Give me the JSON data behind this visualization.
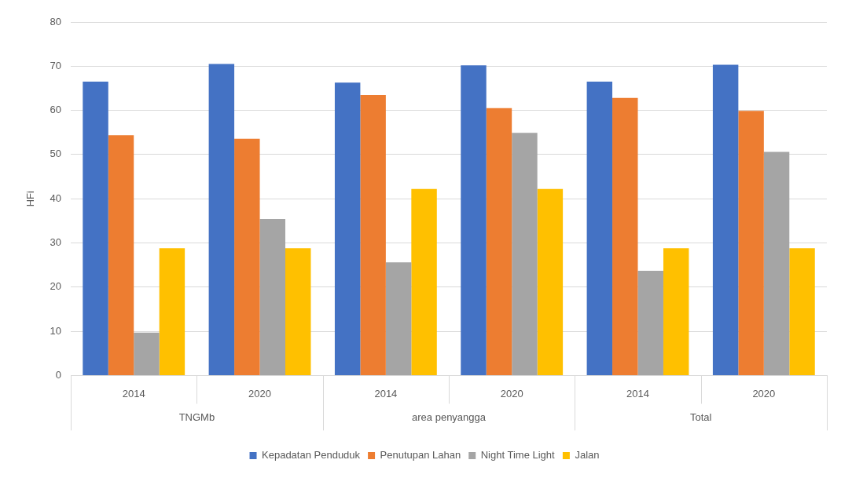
{
  "chart_data": {
    "type": "bar",
    "ylabel": "HFi",
    "categories": [
      "2014",
      "2020",
      "2014",
      "2020",
      "2014",
      "2020"
    ],
    "annotations": [
      "TNGMb",
      "area penyangga",
      "Total"
    ],
    "series": [
      {
        "name": "Kepadatan Penduduk",
        "color": "#4472c4",
        "values": [
          66.5,
          70.5,
          66.3,
          70.2,
          66.5,
          70.3
        ]
      },
      {
        "name": "Penutupan Lahan",
        "color": "#ed7d31",
        "values": [
          54.4,
          53.6,
          63.5,
          60.5,
          62.8,
          59.9
        ]
      },
      {
        "name": "Night Time Light",
        "color": "#a5a5a5",
        "values": [
          9.7,
          35.4,
          25.6,
          54.9,
          23.7,
          50.6
        ]
      },
      {
        "name": "Jalan",
        "color": "#ffc000",
        "values": [
          28.8,
          28.8,
          42.2,
          42.2,
          28.8,
          28.8
        ]
      }
    ],
    "ylim": [
      0,
      80
    ],
    "yticks": [
      0,
      10,
      20,
      30,
      40,
      50,
      60,
      70,
      80
    ],
    "grid": "y",
    "legend": "bottom"
  }
}
